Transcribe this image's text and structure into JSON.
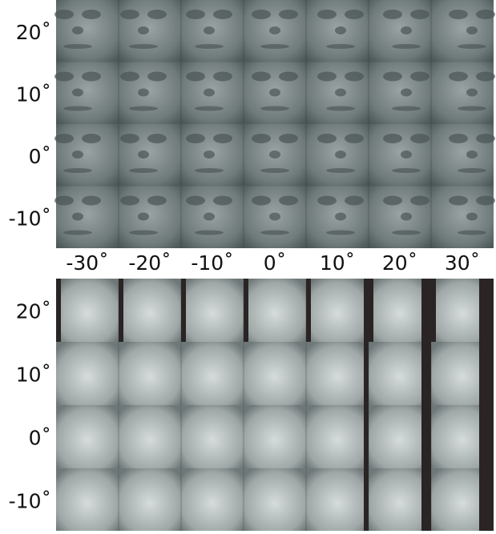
{
  "top_grid": {
    "row_labels": [
      "20˚",
      "10˚",
      "0˚",
      "-10˚"
    ]
  },
  "column_labels": [
    "-30˚",
    "-20˚",
    "-10˚",
    "0˚",
    "10˚",
    "20˚",
    "30˚"
  ],
  "bottom_grid": {
    "row_labels": [
      "20˚",
      "10˚",
      "0˚",
      "-10˚"
    ]
  }
}
